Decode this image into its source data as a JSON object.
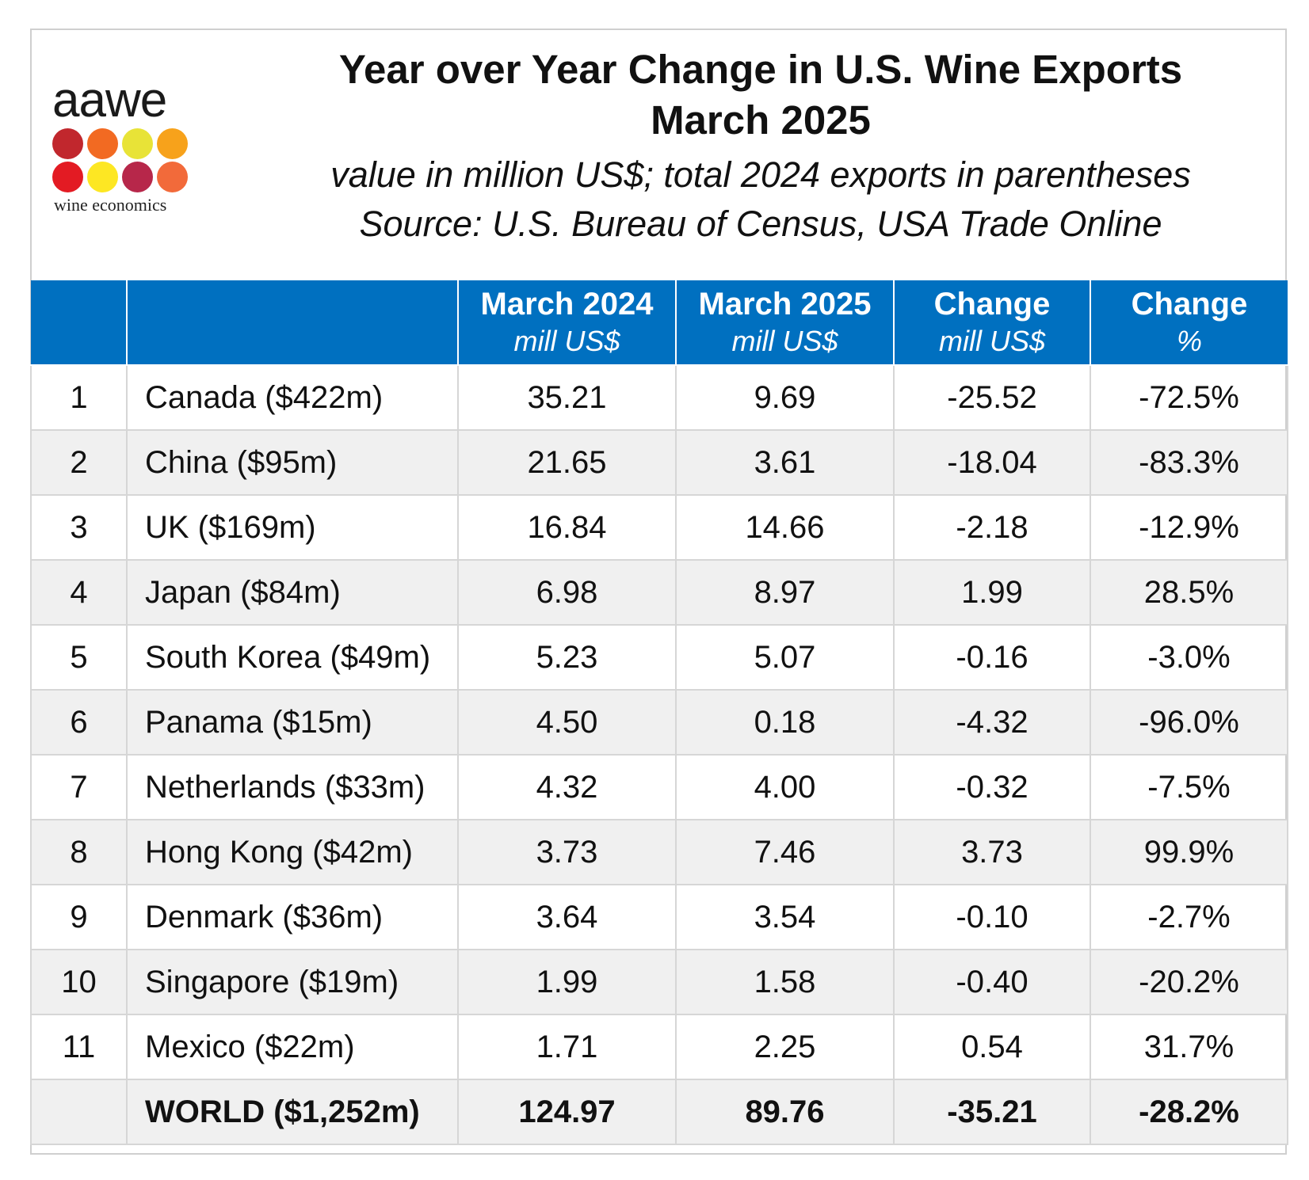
{
  "logo": {
    "word": "aawe",
    "subtitle": "wine economics",
    "dot_colors": [
      "#c1272d",
      "#f26a22",
      "#e8e337",
      "#f7a21b",
      "#e31b23",
      "#fde723",
      "#b7274a",
      "#f26a3a"
    ]
  },
  "title": {
    "line1": "Year over Year Change in U.S. Wine Exports",
    "line2": "March 2025",
    "subtitle": "value in million US$; total 2024 exports in parentheses",
    "source": "Source: U.S. Bureau of Census, USA Trade Online"
  },
  "colors": {
    "header_bg": "#0070c0",
    "alt_row_bg": "#f0f0f0"
  },
  "chart_data": {
    "type": "table",
    "columns": [
      {
        "main": "",
        "sub": ""
      },
      {
        "main": "",
        "sub": ""
      },
      {
        "main": "March 2024",
        "sub": "mill US$"
      },
      {
        "main": "March 2025",
        "sub": "mill US$"
      },
      {
        "main": "Change",
        "sub": "mill US$"
      },
      {
        "main": "Change",
        "sub": "%"
      }
    ],
    "rows": [
      {
        "rank": "1",
        "country": "Canada ($422m)",
        "mar2024": "35.21",
        "mar2025": "9.69",
        "change": "-25.52",
        "change_pct": "-72.5%"
      },
      {
        "rank": "2",
        "country": "China ($95m)",
        "mar2024": "21.65",
        "mar2025": "3.61",
        "change": "-18.04",
        "change_pct": "-83.3%"
      },
      {
        "rank": "3",
        "country": "UK ($169m)",
        "mar2024": "16.84",
        "mar2025": "14.66",
        "change": "-2.18",
        "change_pct": "-12.9%"
      },
      {
        "rank": "4",
        "country": "Japan ($84m)",
        "mar2024": "6.98",
        "mar2025": "8.97",
        "change": "1.99",
        "change_pct": "28.5%"
      },
      {
        "rank": "5",
        "country": "South Korea ($49m)",
        "mar2024": "5.23",
        "mar2025": "5.07",
        "change": "-0.16",
        "change_pct": "-3.0%"
      },
      {
        "rank": "6",
        "country": "Panama ($15m)",
        "mar2024": "4.50",
        "mar2025": "0.18",
        "change": "-4.32",
        "change_pct": "-96.0%"
      },
      {
        "rank": "7",
        "country": "Netherlands ($33m)",
        "mar2024": "4.32",
        "mar2025": "4.00",
        "change": "-0.32",
        "change_pct": "-7.5%"
      },
      {
        "rank": "8",
        "country": "Hong Kong ($42m)",
        "mar2024": "3.73",
        "mar2025": "7.46",
        "change": "3.73",
        "change_pct": "99.9%"
      },
      {
        "rank": "9",
        "country": "Denmark ($36m)",
        "mar2024": "3.64",
        "mar2025": "3.54",
        "change": "-0.10",
        "change_pct": "-2.7%"
      },
      {
        "rank": "10",
        "country": "Singapore ($19m)",
        "mar2024": "1.99",
        "mar2025": "1.58",
        "change": "-0.40",
        "change_pct": "-20.2%"
      },
      {
        "rank": "11",
        "country": "Mexico ($22m)",
        "mar2024": "1.71",
        "mar2025": "2.25",
        "change": "0.54",
        "change_pct": "31.7%"
      }
    ],
    "total": {
      "rank": "",
      "country": "WORLD ($1,252m)",
      "mar2024": "124.97",
      "mar2025": "89.76",
      "change": "-35.21",
      "change_pct": "-28.2%"
    }
  }
}
